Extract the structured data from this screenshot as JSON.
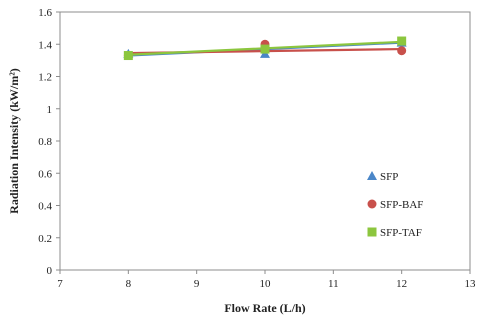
{
  "chart_data": {
    "type": "line",
    "xlabel": "Flow Rate (L/h)",
    "ylabel": "Radiation Intensity (kW/m²)",
    "xlim": [
      7,
      13
    ],
    "ylim": [
      0,
      1.6
    ],
    "xticks": [
      "7",
      "8",
      "9",
      "10",
      "11",
      "12",
      "13"
    ],
    "yticks": [
      "0",
      "0.2",
      "0.4",
      "0.6",
      "0.8",
      "1",
      "1.2",
      "1.4",
      "1.6"
    ],
    "legend_position": "bottom-right",
    "grid": false,
    "series": [
      {
        "name": "SFP",
        "marker": "triangle",
        "color": "#4a86c8",
        "points": [
          {
            "x": 8,
            "y": 1.34
          },
          {
            "x": 10,
            "y": 1.34
          },
          {
            "x": 12,
            "y": 1.41
          }
        ],
        "trend": [
          {
            "x": 8,
            "y": 1.33
          },
          {
            "x": 12,
            "y": 1.41
          }
        ]
      },
      {
        "name": "SFP-BAF",
        "marker": "circle",
        "color": "#c8504b",
        "points": [
          {
            "x": 8,
            "y": 1.33
          },
          {
            "x": 10,
            "y": 1.4
          },
          {
            "x": 12,
            "y": 1.36
          }
        ],
        "trend": [
          {
            "x": 8,
            "y": 1.345
          },
          {
            "x": 12,
            "y": 1.37
          }
        ]
      },
      {
        "name": "SFP-TAF",
        "marker": "square",
        "color": "#8cc63e",
        "points": [
          {
            "x": 8,
            "y": 1.33
          },
          {
            "x": 10,
            "y": 1.37
          },
          {
            "x": 12,
            "y": 1.42
          }
        ],
        "trend": [
          {
            "x": 8,
            "y": 1.335
          },
          {
            "x": 12,
            "y": 1.415
          }
        ]
      }
    ]
  }
}
